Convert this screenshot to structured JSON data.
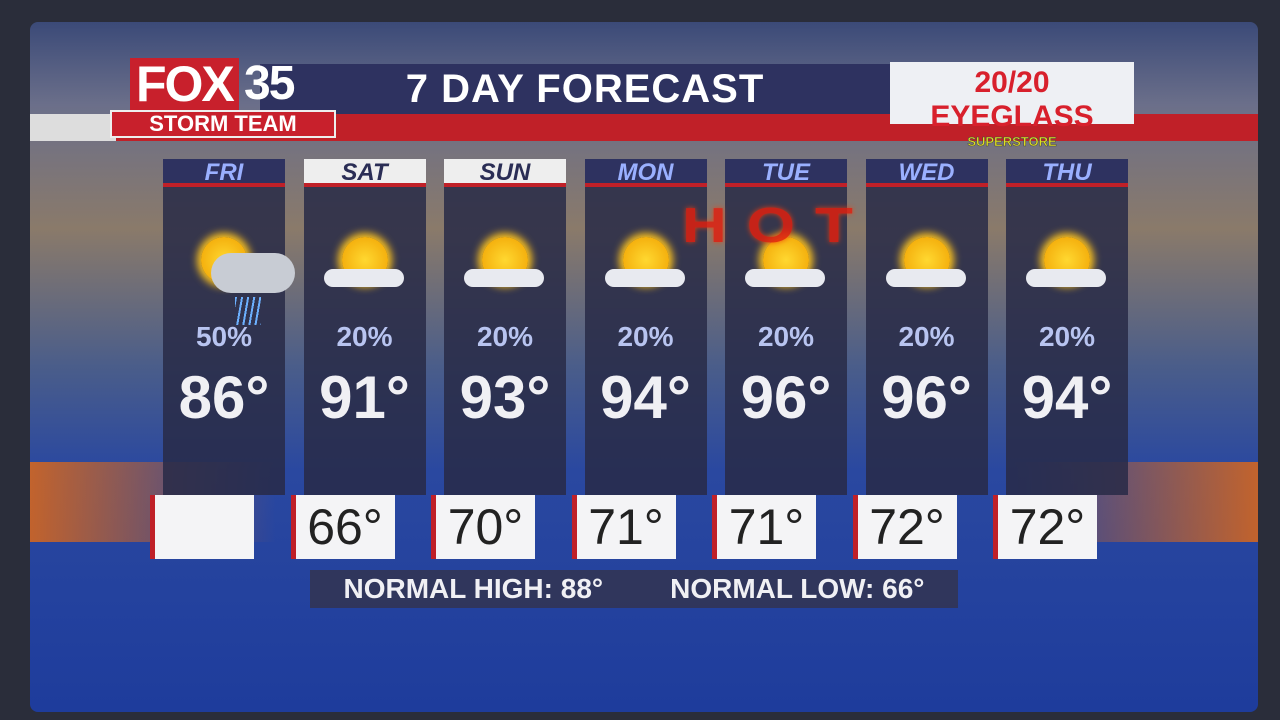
{
  "logo": {
    "brand": "FOX",
    "channel": "35",
    "team": "STORM TEAM"
  },
  "title": "7 DAY FORECAST",
  "sponsor": {
    "name": "20/20 EYEGLASS",
    "sub": "SUPERSTORE"
  },
  "overlay": "HOT",
  "colors": {
    "accent_red": "#c02028",
    "navy": "#2e3260"
  },
  "days": [
    {
      "day": "FRI",
      "icon": "sun-cloud-rain-icon",
      "pop": "50%",
      "high": "86°",
      "low": "",
      "highlight": false
    },
    {
      "day": "SAT",
      "icon": "partly-sunny-icon",
      "pop": "20%",
      "high": "91°",
      "low": "66°",
      "highlight": true
    },
    {
      "day": "SUN",
      "icon": "partly-sunny-icon",
      "pop": "20%",
      "high": "93°",
      "low": "70°",
      "highlight": true
    },
    {
      "day": "MON",
      "icon": "partly-sunny-icon",
      "pop": "20%",
      "high": "94°",
      "low": "71°",
      "highlight": false
    },
    {
      "day": "TUE",
      "icon": "partly-sunny-icon",
      "pop": "20%",
      "high": "96°",
      "low": "71°",
      "highlight": false
    },
    {
      "day": "WED",
      "icon": "partly-sunny-icon",
      "pop": "20%",
      "high": "96°",
      "low": "72°",
      "highlight": false
    },
    {
      "day": "THU",
      "icon": "partly-sunny-icon",
      "pop": "20%",
      "high": "94°",
      "low": "72°",
      "highlight": false
    }
  ],
  "normals": {
    "high": "NORMAL HIGH: 88°",
    "low": "NORMAL LOW: 66°"
  }
}
